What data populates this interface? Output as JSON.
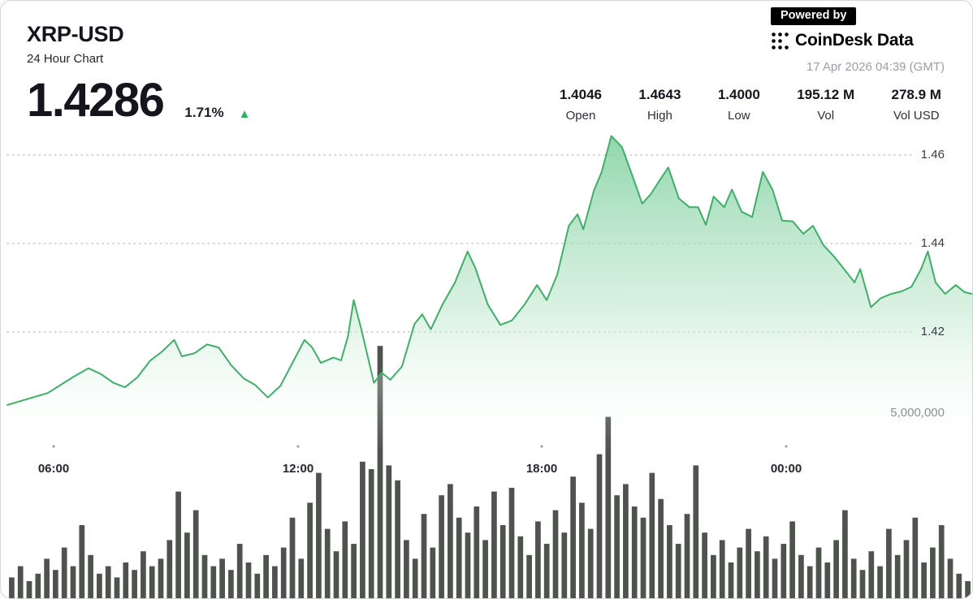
{
  "header": {
    "symbol": "XRP-USD",
    "subtitle": "24 Hour Chart",
    "price": "1.4286",
    "change_percent": "1.71%",
    "change_direction": "up",
    "powered_by_label": "Powered by",
    "brand_name": "CoinDesk Data",
    "timestamp": "17 Apr 2026 04:39 (GMT)"
  },
  "stats": {
    "open": {
      "value": "1.4046",
      "label": "Open"
    },
    "high": {
      "value": "1.4643",
      "label": "High"
    },
    "low": {
      "value": "1.4000",
      "label": "Low"
    },
    "vol": {
      "value": "195.12 M",
      "label": "Vol"
    },
    "vol_usd": {
      "value": "278.9 M",
      "label": "Vol USD"
    }
  },
  "colors": {
    "accent_green": "#3fae68",
    "area_gradient_top": "#7fd0a0",
    "area_gradient_mid": "#bce6cb",
    "volume_bar": "#4e534e",
    "grid_dotted": "#c3c7cc",
    "up_triangle": "#2fae64",
    "tick_dot": "#9aa0a6"
  },
  "chart_data": {
    "type": "line",
    "title": "XRP-USD 24 Hour Chart",
    "subtype": "area-with-volume-bars",
    "grid": "dotted",
    "legend": "off",
    "x_tick_labels": [
      "06:00",
      "12:00",
      "18:00",
      "00:00"
    ],
    "price_axis_ticks": [
      "1.46",
      "1.44",
      "1.42"
    ],
    "price_axis_values": [
      1.46,
      1.44,
      1.42
    ],
    "volume_axis_tick": "5,000,000",
    "volume_axis_value": 5000000,
    "price_ylim": [
      1.4,
      1.4645
    ],
    "summary": {
      "open": 1.4046,
      "high": 1.4643,
      "low": 1.4,
      "last": 1.4286,
      "vol": "195.12 M",
      "vol_usd": "278.9 M"
    },
    "price_series": {
      "name": "XRP-USD price",
      "unit": "USD",
      "x_is_fraction_of_24h_window": true,
      "points": [
        [
          0.0,
          1.4035
        ],
        [
          0.017,
          1.4046
        ],
        [
          0.042,
          1.4062
        ],
        [
          0.068,
          1.4098
        ],
        [
          0.084,
          1.4118
        ],
        [
          0.097,
          1.4105
        ],
        [
          0.11,
          1.4085
        ],
        [
          0.122,
          1.4075
        ],
        [
          0.135,
          1.4098
        ],
        [
          0.148,
          1.4135
        ],
        [
          0.16,
          1.4155
        ],
        [
          0.173,
          1.4182
        ],
        [
          0.181,
          1.4145
        ],
        [
          0.194,
          1.4152
        ],
        [
          0.207,
          1.4172
        ],
        [
          0.219,
          1.4165
        ],
        [
          0.232,
          1.4125
        ],
        [
          0.245,
          1.4095
        ],
        [
          0.257,
          1.408
        ],
        [
          0.27,
          1.4052
        ],
        [
          0.283,
          1.4078
        ],
        [
          0.295,
          1.4128
        ],
        [
          0.308,
          1.4182
        ],
        [
          0.316,
          1.4165
        ],
        [
          0.325,
          1.413
        ],
        [
          0.338,
          1.4142
        ],
        [
          0.346,
          1.4136
        ],
        [
          0.353,
          1.419
        ],
        [
          0.359,
          1.4272
        ],
        [
          0.367,
          1.4205
        ],
        [
          0.38,
          1.4085
        ],
        [
          0.388,
          1.4108
        ],
        [
          0.397,
          1.4092
        ],
        [
          0.409,
          1.4122
        ],
        [
          0.422,
          1.4218
        ],
        [
          0.43,
          1.424
        ],
        [
          0.439,
          1.4206
        ],
        [
          0.451,
          1.4262
        ],
        [
          0.464,
          1.4312
        ],
        [
          0.477,
          1.4382
        ],
        [
          0.485,
          1.4345
        ],
        [
          0.498,
          1.4262
        ],
        [
          0.511,
          1.4216
        ],
        [
          0.523,
          1.4226
        ],
        [
          0.536,
          1.4262
        ],
        [
          0.549,
          1.4306
        ],
        [
          0.559,
          1.4272
        ],
        [
          0.57,
          1.433
        ],
        [
          0.582,
          1.444
        ],
        [
          0.591,
          1.4466
        ],
        [
          0.597,
          1.4432
        ],
        [
          0.608,
          1.452
        ],
        [
          0.616,
          1.4562
        ],
        [
          0.626,
          1.4643
        ],
        [
          0.637,
          1.4618
        ],
        [
          0.648,
          1.4552
        ],
        [
          0.658,
          1.449
        ],
        [
          0.667,
          1.4512
        ],
        [
          0.677,
          1.4546
        ],
        [
          0.685,
          1.4572
        ],
        [
          0.696,
          1.4502
        ],
        [
          0.707,
          1.4482
        ],
        [
          0.716,
          1.4482
        ],
        [
          0.724,
          1.4442
        ],
        [
          0.732,
          1.4506
        ],
        [
          0.743,
          1.4482
        ],
        [
          0.751,
          1.4522
        ],
        [
          0.761,
          1.4472
        ],
        [
          0.772,
          1.446
        ],
        [
          0.783,
          1.4562
        ],
        [
          0.793,
          1.4522
        ],
        [
          0.803,
          1.4452
        ],
        [
          0.814,
          1.445
        ],
        [
          0.825,
          1.4422
        ],
        [
          0.835,
          1.444
        ],
        [
          0.846,
          1.4396
        ],
        [
          0.857,
          1.437
        ],
        [
          0.868,
          1.434
        ],
        [
          0.878,
          1.4312
        ],
        [
          0.884,
          1.4342
        ],
        [
          0.895,
          1.4256
        ],
        [
          0.905,
          1.4276
        ],
        [
          0.916,
          1.4286
        ],
        [
          0.927,
          1.4292
        ],
        [
          0.937,
          1.4302
        ],
        [
          0.947,
          1.4342
        ],
        [
          0.954,
          1.4382
        ],
        [
          0.962,
          1.4312
        ],
        [
          0.972,
          1.4286
        ],
        [
          0.983,
          1.4306
        ],
        [
          0.992,
          1.429
        ],
        [
          1.0,
          1.4286
        ]
      ]
    },
    "volume_series": {
      "name": "Volume",
      "unit": "millions",
      "values": [
        0.6,
        0.9,
        0.5,
        0.7,
        1.1,
        0.8,
        1.4,
        0.9,
        2.0,
        1.2,
        0.7,
        0.9,
        0.6,
        1.0,
        0.8,
        1.3,
        0.9,
        1.1,
        1.6,
        2.9,
        1.8,
        2.4,
        1.2,
        0.9,
        1.1,
        0.8,
        1.5,
        1.0,
        0.7,
        1.2,
        0.9,
        1.4,
        2.2,
        1.1,
        2.6,
        3.4,
        1.9,
        1.3,
        2.1,
        1.5,
        3.7,
        3.5,
        6.8,
        3.6,
        3.2,
        1.6,
        1.1,
        2.3,
        1.4,
        2.8,
        3.1,
        2.2,
        1.8,
        2.5,
        1.6,
        2.9,
        2.0,
        3.0,
        1.7,
        1.2,
        2.1,
        1.5,
        2.4,
        1.8,
        3.3,
        2.6,
        1.9,
        3.9,
        4.9,
        2.8,
        3.1,
        2.5,
        2.2,
        3.4,
        2.7,
        2.0,
        1.5,
        2.3,
        3.6,
        1.8,
        1.2,
        1.6,
        1.0,
        1.4,
        1.9,
        1.3,
        1.7,
        1.1,
        1.5,
        2.1,
        1.2,
        0.9,
        1.4,
        1.0,
        1.6,
        2.4,
        1.1,
        0.8,
        1.3,
        0.9,
        1.9,
        1.2,
        1.6,
        2.2,
        1.0,
        1.4,
        2.0,
        1.1,
        0.7,
        0.5
      ]
    }
  }
}
